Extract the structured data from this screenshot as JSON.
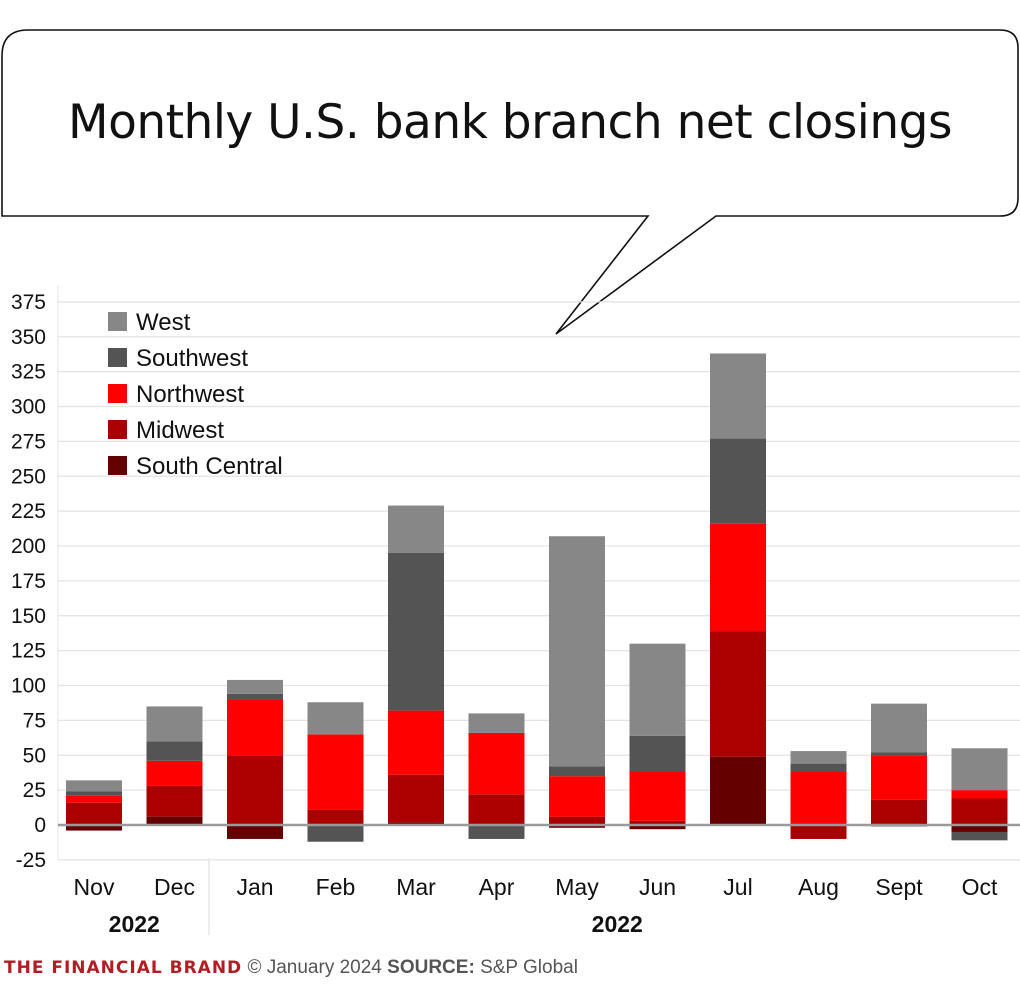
{
  "title": "Monthly U.S. bank branch net closings",
  "footer": {
    "brand": "THE FINANCIAL BRAND",
    "copyright": "© January 2024",
    "source_label": "SOURCE:",
    "source": "S&P Global"
  },
  "colors": {
    "West": "#878787",
    "Southwest": "#545454",
    "Northwest": "#ff0000",
    "Midwest": "#aa0000",
    "South Central": "#650000",
    "brand": "#b01e23",
    "grid": "#e3e3e3",
    "zero": "#9a9a9a"
  },
  "chart_data": {
    "type": "bar",
    "stacked": true,
    "title": "Monthly U.S. bank branch net closings",
    "xlabel": "",
    "ylabel": "",
    "ylim": [
      -25,
      375
    ],
    "yticks": [
      -25,
      0,
      25,
      50,
      75,
      100,
      125,
      150,
      175,
      200,
      225,
      250,
      275,
      300,
      325,
      350,
      375
    ],
    "grid": true,
    "legend_position": "upper-left",
    "categories": [
      "Nov",
      "Dec",
      "Jan",
      "Feb",
      "Mar",
      "Apr",
      "May",
      "Jun",
      "Jul",
      "Aug",
      "Sept",
      "Oct"
    ],
    "group_labels": [
      {
        "label": "2022",
        "from": 0,
        "to": 1
      },
      {
        "label": "2022",
        "from": 2,
        "to": 11
      }
    ],
    "series": [
      {
        "name": "South Central",
        "values": [
          -4,
          6,
          -10,
          1,
          2,
          0,
          -2,
          -3,
          49,
          0,
          -1,
          -5
        ]
      },
      {
        "name": "Midwest",
        "values": [
          16,
          22,
          50,
          10,
          34,
          22,
          6,
          3,
          90,
          -10,
          18,
          19
        ]
      },
      {
        "name": "Northwest",
        "values": [
          5,
          18,
          40,
          54,
          46,
          44,
          29,
          35,
          77,
          38,
          32,
          6
        ]
      },
      {
        "name": "Southwest",
        "values": [
          3,
          14,
          4,
          -12,
          113,
          -10,
          7,
          26,
          61,
          6,
          2,
          -6
        ]
      },
      {
        "name": "West",
        "values": [
          8,
          25,
          10,
          23,
          34,
          14,
          165,
          66,
          61,
          9,
          35,
          30
        ]
      }
    ],
    "legend": [
      "West",
      "Southwest",
      "Northwest",
      "Midwest",
      "South Central"
    ]
  }
}
